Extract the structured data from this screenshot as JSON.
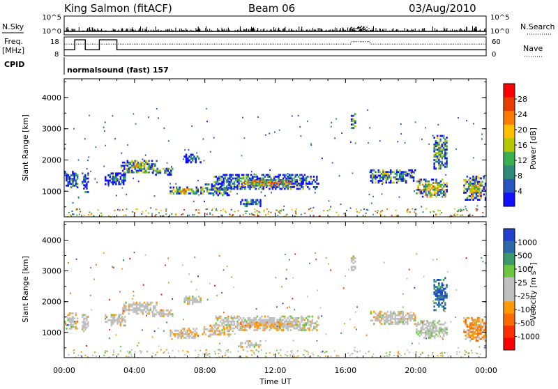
{
  "header": {
    "station": "King Salmon (fitACF)",
    "beam": "Beam 06",
    "date": "03/Aug/2010"
  },
  "top_panel": {
    "nsky_label": "N.Sky",
    "nsky_ticks": [
      "10^5",
      "10^0"
    ],
    "nsearch_label": "N.Search",
    "nsearch_ticks": [
      "10^5",
      "10^0"
    ],
    "freq_label_1": "Freq.",
    "freq_label_2": "[MHz]",
    "freq_ticks": [
      "18",
      "8"
    ],
    "nave_label": "Nave",
    "nave_ticks": [
      "60",
      "0"
    ],
    "cpid_label": "CPID",
    "cpid_text": "normalsound (fast) 157"
  },
  "axes": {
    "ylabel": "Slant Range [km]",
    "yticks": [
      "4000",
      "3000",
      "2000",
      "1000"
    ],
    "xticks": [
      "00:00",
      "04:00",
      "08:00",
      "12:00",
      "16:00",
      "20:00",
      "00:00"
    ],
    "xlabel": "Time UT"
  },
  "power_colorbar": {
    "label": "Power [dB]",
    "ticks": [
      "28",
      "24",
      "20",
      "16",
      "12",
      "8",
      "4"
    ],
    "colors": [
      "#ff0000",
      "#e83c00",
      "#ff7a00",
      "#ffc000",
      "#b6c800",
      "#3cb050",
      "#2e8a7a",
      "#2a56c0",
      "#1010ff"
    ]
  },
  "velocity_colorbar": {
    "label": "Velocity [m s",
    "label_sup": "-1",
    "label_end": "]",
    "ticks": [
      "1000",
      "500",
      "100",
      "25",
      "-25",
      "-100",
      "-500",
      "-1000"
    ],
    "colors": [
      "#2040d0",
      "#2c6aa8",
      "#3a9a6a",
      "#6cc840",
      "#c0c0c0",
      "#c0c0c0",
      "#ff9a00",
      "#ff6a00",
      "#ff3000",
      "#ff0000"
    ]
  },
  "chart_data": {
    "type": "heatmap",
    "title": "King Salmon (fitACF) Beam 06 03/Aug/2010",
    "xlabel": "Time UT",
    "ylabel": "Slant Range [km]",
    "x_range_hours": [
      0,
      24
    ],
    "y_range_km": [
      180,
      4600
    ],
    "panels": [
      {
        "name": "Power [dB]",
        "range": [
          0,
          30
        ],
        "blobs": [
          {
            "t": [
              0.0,
              0.8
            ],
            "r": [
              1100,
              1650
            ],
            "v": 10
          },
          {
            "t": [
              1.0,
              1.4
            ],
            "r": [
              950,
              1600
            ],
            "v": 8
          },
          {
            "t": [
              2.3,
              3.5
            ],
            "r": [
              1200,
              1600
            ],
            "v": 10
          },
          {
            "t": [
              3.2,
              5.3
            ],
            "r": [
              1580,
              2000
            ],
            "v": 16
          },
          {
            "t": [
              5.0,
              6.2
            ],
            "r": [
              1500,
              1750
            ],
            "v": 14
          },
          {
            "t": [
              6.8,
              7.8
            ],
            "r": [
              1900,
              2200
            ],
            "v": 8
          },
          {
            "t": [
              6.0,
              8.0
            ],
            "r": [
              900,
              1150
            ],
            "v": 18
          },
          {
            "t": [
              8.0,
              9.5
            ],
            "r": [
              850,
              1250
            ],
            "v": 14
          },
          {
            "t": [
              8.5,
              14.5
            ],
            "r": [
              1050,
              1550
            ],
            "v": 12
          },
          {
            "t": [
              10.0,
              13.0
            ],
            "r": [
              1150,
              1350
            ],
            "v": 22
          },
          {
            "t": [
              10.0,
              11.2
            ],
            "r": [
              500,
              750
            ],
            "v": 10
          },
          {
            "t": [
              16.3,
              16.6
            ],
            "r": [
              3000,
              3500
            ],
            "v": 10
          },
          {
            "t": [
              17.4,
              20.0
            ],
            "r": [
              1250,
              1700
            ],
            "v": 14
          },
          {
            "t": [
              20.0,
              21.8
            ],
            "r": [
              800,
              1400
            ],
            "v": 18
          },
          {
            "t": [
              21.0,
              21.8
            ],
            "r": [
              1700,
              2800
            ],
            "v": 14
          },
          {
            "t": [
              22.7,
              24.0
            ],
            "r": [
              700,
              1500
            ],
            "v": 16
          }
        ]
      },
      {
        "name": "Velocity [m s-1]",
        "range": [
          -1000,
          1000
        ],
        "blobs": [
          {
            "t": [
              0.0,
              0.8
            ],
            "r": [
              1100,
              1650
            ],
            "v": 0
          },
          {
            "t": [
              1.0,
              1.4
            ],
            "r": [
              950,
              1600
            ],
            "v": 0
          },
          {
            "t": [
              2.3,
              3.5
            ],
            "r": [
              1200,
              1600
            ],
            "v": 0
          },
          {
            "t": [
              3.2,
              5.3
            ],
            "r": [
              1580,
              2000
            ],
            "v": 0
          },
          {
            "t": [
              5.0,
              6.2
            ],
            "r": [
              1500,
              1750
            ],
            "v": 0
          },
          {
            "t": [
              6.8,
              7.8
            ],
            "r": [
              1900,
              2200
            ],
            "v": 0
          },
          {
            "t": [
              6.0,
              8.0
            ],
            "r": [
              800,
              1150
            ],
            "v": -150
          },
          {
            "t": [
              8.0,
              9.5
            ],
            "r": [
              850,
              1250
            ],
            "v": -150
          },
          {
            "t": [
              8.5,
              14.5
            ],
            "r": [
              1050,
              1550
            ],
            "v": 0
          },
          {
            "t": [
              10.0,
              13.0
            ],
            "r": [
              1150,
              1350
            ],
            "v": -200
          },
          {
            "t": [
              10.0,
              11.2
            ],
            "r": [
              500,
              750
            ],
            "v": 0
          },
          {
            "t": [
              16.3,
              16.6
            ],
            "r": [
              3000,
              3500
            ],
            "v": 0
          },
          {
            "t": [
              17.4,
              20.0
            ],
            "r": [
              1250,
              1700
            ],
            "v": 0
          },
          {
            "t": [
              20.0,
              21.8
            ],
            "r": [
              800,
              1400
            ],
            "v": 60
          },
          {
            "t": [
              21.0,
              21.8
            ],
            "r": [
              1700,
              2800
            ],
            "v": 700
          },
          {
            "t": [
              22.7,
              24.0
            ],
            "r": [
              700,
              1500
            ],
            "v": -300
          }
        ]
      }
    ]
  }
}
